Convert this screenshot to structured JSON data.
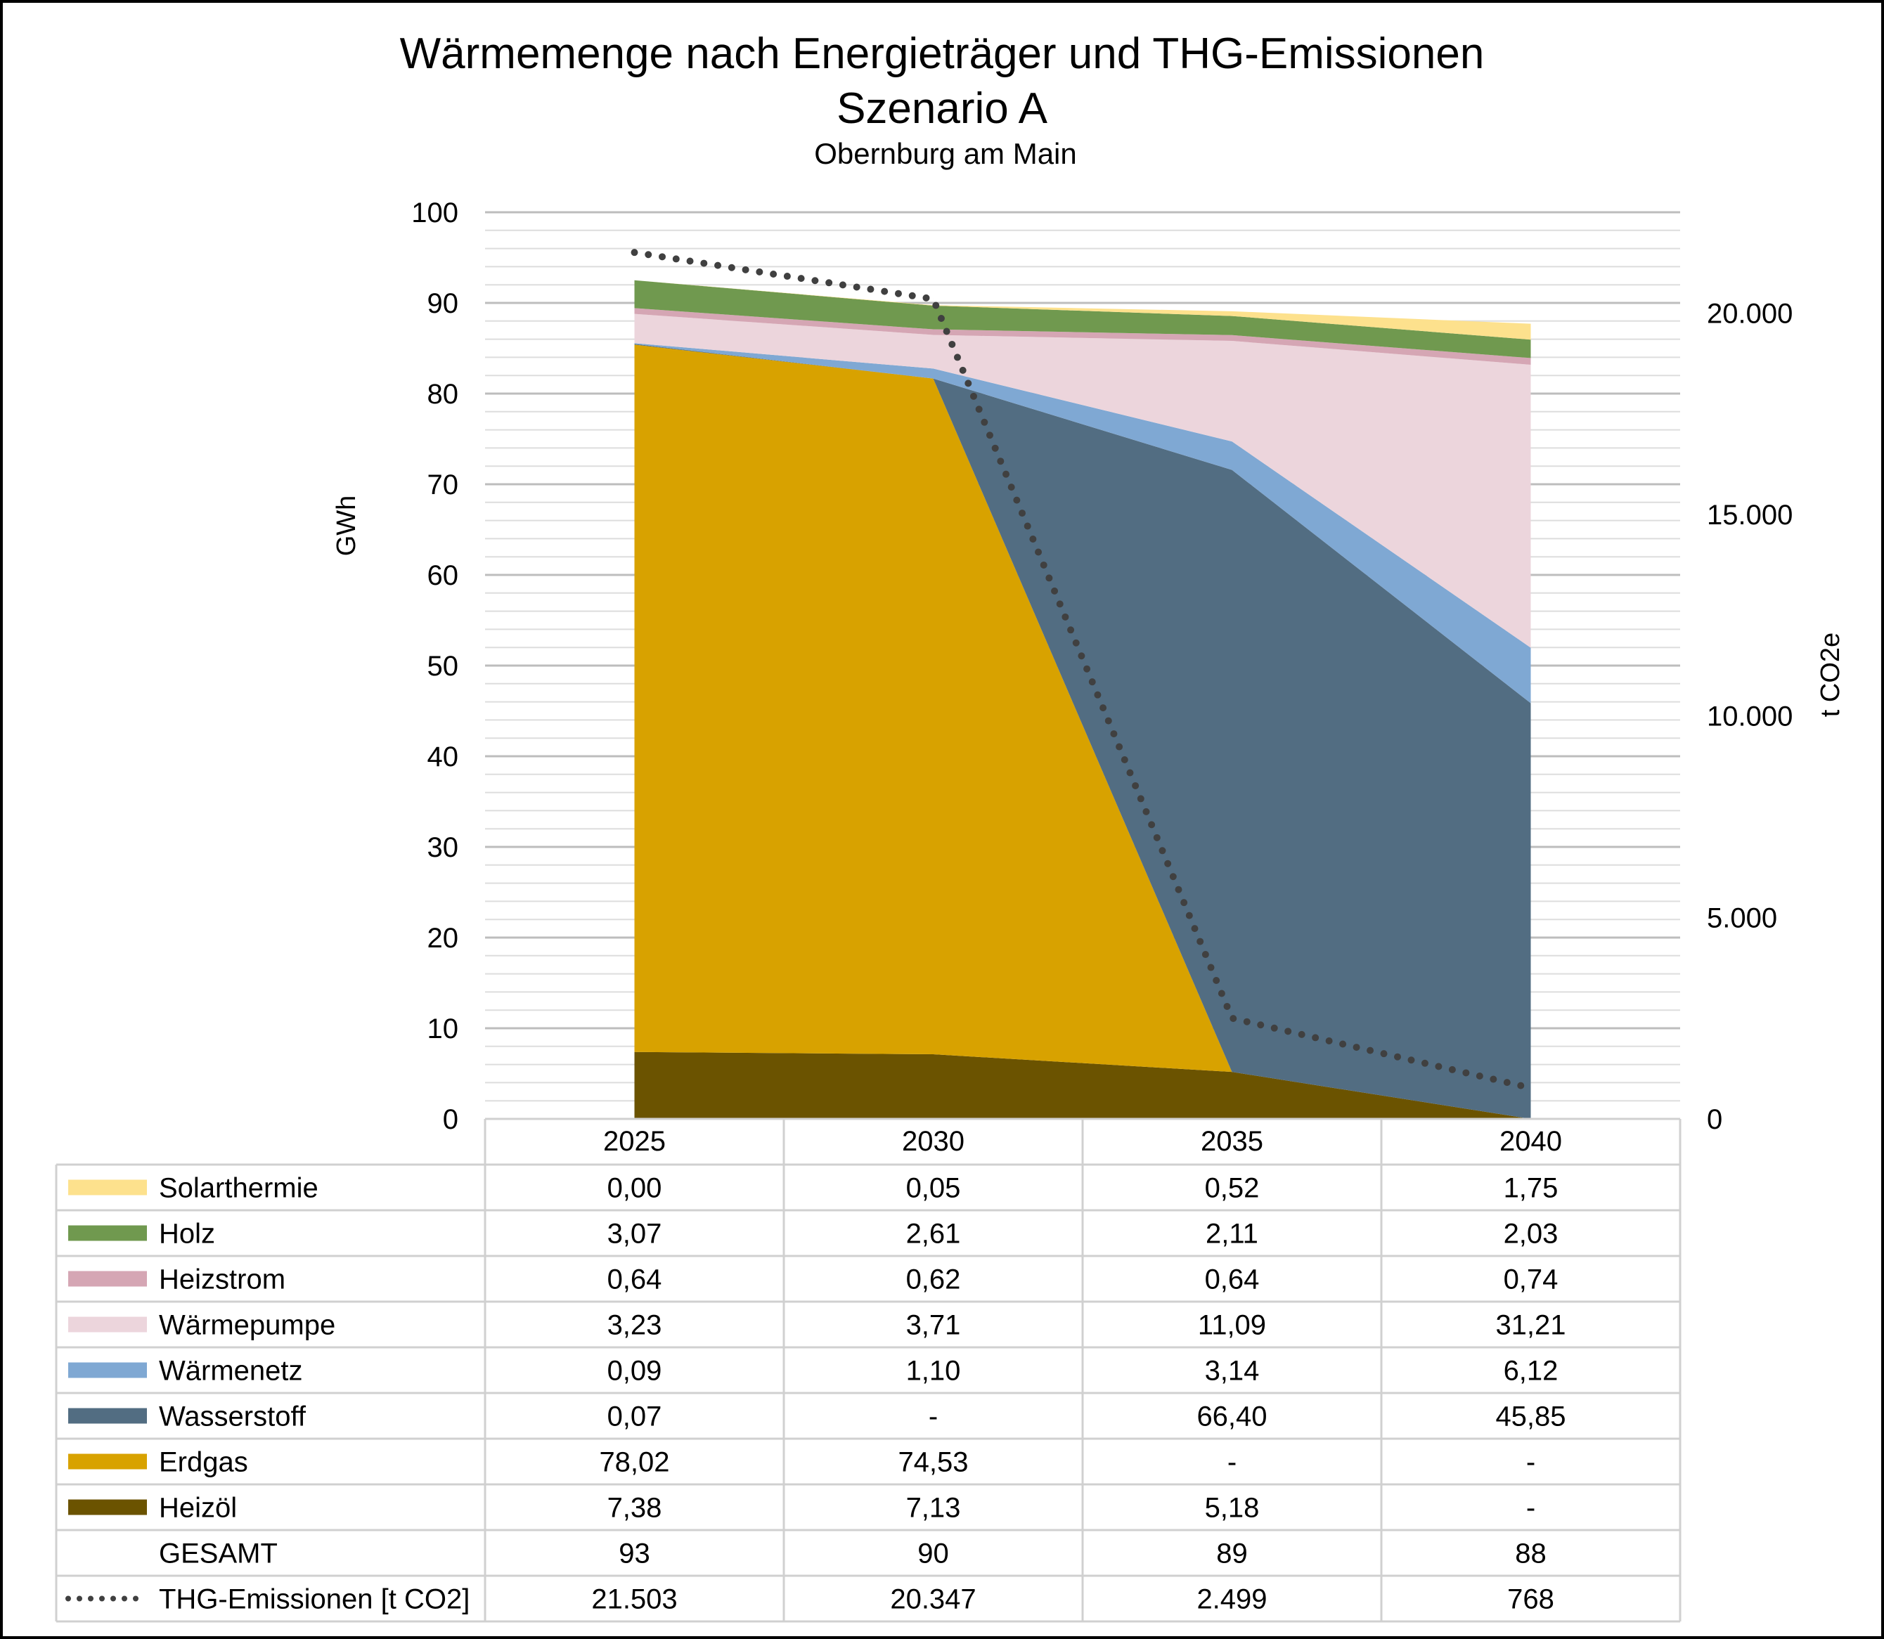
{
  "chart_data": {
    "type": "area",
    "title": "Wärmemenge nach Energieträger und THG-Emissionen",
    "subtitle": "Szenario A",
    "subsubtitle": "Obernburg am Main",
    "ylabel": "GWh",
    "y2label": "t CO2e",
    "ylim": [
      0,
      100
    ],
    "y_ticks": [
      "0",
      "10",
      "20",
      "30",
      "40",
      "50",
      "60",
      "70",
      "80",
      "90",
      "100"
    ],
    "y2lim": [
      0,
      22500
    ],
    "y2_ticks": [
      "0",
      "5.000",
      "10.000",
      "15.000",
      "20.000"
    ],
    "y2_tick_values": [
      0,
      5000,
      10000,
      15000,
      20000
    ],
    "minor_gridlines": true,
    "categories": [
      "2025",
      "2030",
      "2035",
      "2040"
    ],
    "series": [
      {
        "name": "Heizöl",
        "color": "#6b5300",
        "values": [
          7.38,
          7.13,
          5.18,
          0
        ],
        "labels": [
          "7,38",
          "7,13",
          "5,18",
          "-"
        ]
      },
      {
        "name": "Erdgas",
        "color": "#d8a200",
        "values": [
          78.02,
          74.53,
          0,
          0
        ],
        "labels": [
          "78,02",
          "74,53",
          "-",
          "-"
        ]
      },
      {
        "name": "Wasserstoff",
        "color": "#526d82",
        "values": [
          0.07,
          0,
          66.4,
          45.85
        ],
        "labels": [
          "0,07",
          "-",
          "66,40",
          "45,85"
        ]
      },
      {
        "name": "Wärmenetz",
        "color": "#7fa8d3",
        "values": [
          0.09,
          1.1,
          3.14,
          6.12
        ],
        "labels": [
          "0,09",
          "1,10",
          "3,14",
          "6,12"
        ]
      },
      {
        "name": "Wärmepumpe",
        "color": "#ecd5dc",
        "values": [
          3.23,
          3.71,
          11.09,
          31.21
        ],
        "labels": [
          "3,23",
          "3,71",
          "11,09",
          "31,21"
        ]
      },
      {
        "name": "Heizstrom",
        "color": "#d5a6b4",
        "values": [
          0.64,
          0.62,
          0.64,
          0.74
        ],
        "labels": [
          "0,64",
          "0,62",
          "0,64",
          "0,74"
        ]
      },
      {
        "name": "Holz",
        "color": "#70994f",
        "values": [
          3.07,
          2.61,
          2.11,
          2.03
        ],
        "labels": [
          "3,07",
          "2,61",
          "2,11",
          "2,03"
        ]
      },
      {
        "name": "Solarthermie",
        "color": "#fde18d",
        "values": [
          0.0,
          0.05,
          0.52,
          1.75
        ],
        "labels": [
          "0,00",
          "0,05",
          "0,52",
          "1,75"
        ]
      }
    ],
    "total": {
      "name": "GESAMT",
      "labels": [
        "93",
        "90",
        "89",
        "88"
      ]
    },
    "emissions": {
      "name": "THG-Emissionen [t CO2]",
      "color": "#404040",
      "axis": "secondary",
      "values": [
        21503,
        20347,
        2499,
        768
      ],
      "labels": [
        "21.503",
        "20.347",
        "2.499",
        "768"
      ]
    }
  }
}
